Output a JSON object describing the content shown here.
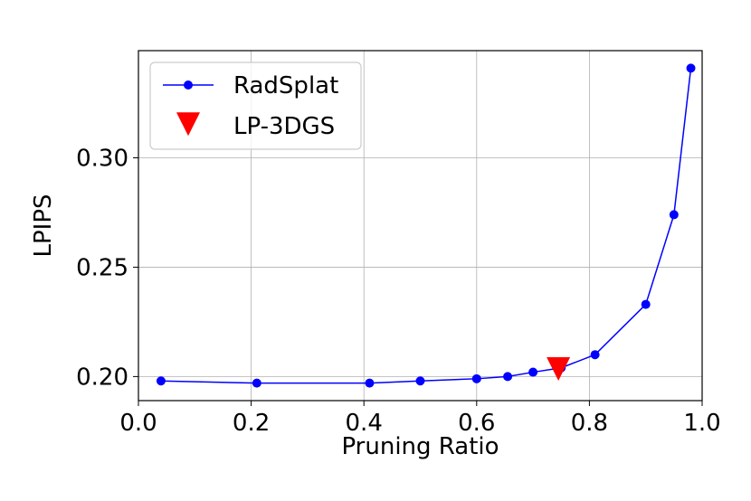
{
  "chart_data": {
    "type": "scatter",
    "xlabel": "Pruning Ratio",
    "ylabel": "LPIPS",
    "xlim": [
      0.0,
      1.0
    ],
    "ylim": [
      0.189,
      0.349
    ],
    "xticks": [
      "0.0",
      "0.2",
      "0.4",
      "0.6",
      "0.8",
      "1.0"
    ],
    "xtick_values": [
      0.0,
      0.2,
      0.4,
      0.6,
      0.8,
      1.0
    ],
    "yticks": [
      "0.20",
      "0.25",
      "0.30"
    ],
    "ytick_values": [
      0.2,
      0.25,
      0.3
    ],
    "grid": true,
    "legend_position": "top-left",
    "series": [
      {
        "name": "RadSplat",
        "kind": "line-with-markers",
        "marker": "circle",
        "color": "#0000ff",
        "x": [
          0.04,
          0.21,
          0.41,
          0.5,
          0.6,
          0.655,
          0.7,
          0.75,
          0.81,
          0.9,
          0.95,
          0.98
        ],
        "y": [
          0.198,
          0.197,
          0.197,
          0.198,
          0.199,
          0.2,
          0.202,
          0.204,
          0.21,
          0.233,
          0.274,
          0.341
        ]
      },
      {
        "name": "LP-3DGS",
        "kind": "marker",
        "marker": "triangle-down",
        "color": "#ff0000",
        "x": [
          0.745
        ],
        "y": [
          0.204
        ]
      }
    ]
  }
}
